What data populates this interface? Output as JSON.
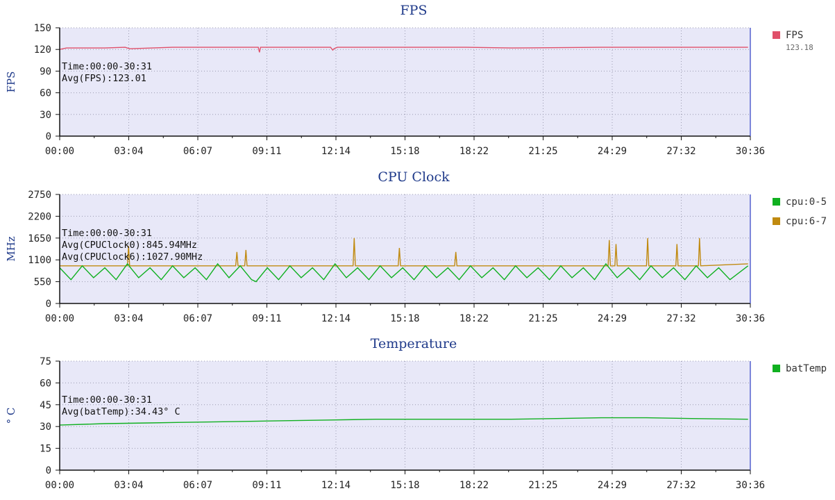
{
  "x_tick_labels": [
    "00:00",
    "03:04",
    "06:07",
    "09:11",
    "12:14",
    "15:18",
    "18:22",
    "21:25",
    "24:29",
    "27:32",
    "30:36"
  ],
  "chart_data": [
    {
      "type": "line",
      "title": "FPS",
      "ylabel": "FPS",
      "ylim": [
        0,
        150
      ],
      "yticks": [
        0,
        30,
        60,
        90,
        120,
        150
      ],
      "xlim_minutes": [
        0,
        30.6
      ],
      "annotations": [
        "Time:00:00-30:31",
        "Avg(FPS):123.01"
      ],
      "legend": [
        {
          "name": "FPS",
          "value_label": "123.18",
          "color": "#e0506a"
        }
      ],
      "series": [
        {
          "name": "FPS",
          "color": "#e0506a",
          "x": [
            0,
            0.3,
            2.0,
            2.9,
            3.1,
            5.0,
            7.0,
            8.8,
            8.85,
            8.9,
            10.0,
            12.0,
            12.1,
            12.15,
            12.3,
            14.0,
            18.0,
            20.0,
            24.0,
            28.0,
            30.5
          ],
          "values": [
            120,
            122,
            122,
            123,
            121,
            123,
            123,
            123,
            116,
            123,
            123,
            123,
            119,
            121,
            123,
            123,
            123,
            122,
            123,
            123,
            123
          ]
        }
      ]
    },
    {
      "type": "line",
      "title": "CPU Clock",
      "ylabel": "MHz",
      "ylim": [
        0,
        2750
      ],
      "yticks": [
        0,
        550,
        1100,
        1650,
        2200,
        2750
      ],
      "xlim_minutes": [
        0,
        30.6
      ],
      "annotations": [
        "Time:00:00-30:31",
        "Avg(CPUClock0):845.94MHz",
        "Avg(CPUClock6):1027.90MHz"
      ],
      "legend": [
        {
          "name": "cpu:0-5",
          "color": "#10b020"
        },
        {
          "name": "cpu:6-7",
          "color": "#c08a10"
        }
      ],
      "series": [
        {
          "name": "cpu:6-7",
          "color": "#c08a10",
          "x": [
            0,
            3.0,
            3.05,
            3.1,
            7.8,
            7.85,
            7.9,
            8.2,
            8.25,
            8.3,
            13.0,
            13.05,
            13.1,
            15.0,
            15.05,
            15.1,
            17.5,
            17.55,
            17.6,
            24.3,
            24.35,
            24.4,
            24.6,
            24.65,
            24.7,
            26.0,
            26.05,
            26.1,
            27.3,
            27.35,
            27.4,
            28.3,
            28.35,
            28.4,
            30.5
          ],
          "values": [
            950,
            950,
            1450,
            950,
            950,
            1300,
            950,
            950,
            1350,
            950,
            950,
            1650,
            950,
            950,
            1400,
            950,
            950,
            1300,
            950,
            950,
            1600,
            950,
            950,
            1500,
            950,
            950,
            1650,
            950,
            950,
            1500,
            950,
            950,
            1650,
            950,
            1000
          ]
        },
        {
          "name": "cpu:0-5",
          "color": "#10b020",
          "x": [
            0,
            0.5,
            1.0,
            1.5,
            2.0,
            2.5,
            3.0,
            3.5,
            4.0,
            4.5,
            5.0,
            5.5,
            6.0,
            6.5,
            7.0,
            7.5,
            8.0,
            8.5,
            8.7,
            9.2,
            9.7,
            10.2,
            10.7,
            11.2,
            11.7,
            12.2,
            12.7,
            13.2,
            13.7,
            14.2,
            14.7,
            15.2,
            15.7,
            16.2,
            16.7,
            17.2,
            17.7,
            18.2,
            18.7,
            19.2,
            19.7,
            20.2,
            20.7,
            21.2,
            21.7,
            22.2,
            22.7,
            23.2,
            23.7,
            24.2,
            24.7,
            25.2,
            25.7,
            26.2,
            26.7,
            27.2,
            27.7,
            28.2,
            28.7,
            29.2,
            29.7,
            30.5
          ],
          "values": [
            900,
            600,
            950,
            650,
            900,
            600,
            1000,
            650,
            900,
            600,
            950,
            650,
            900,
            600,
            1000,
            650,
            950,
            600,
            550,
            900,
            600,
            950,
            650,
            900,
            600,
            1000,
            650,
            900,
            600,
            950,
            650,
            900,
            600,
            950,
            650,
            900,
            600,
            950,
            650,
            900,
            600,
            950,
            650,
            900,
            600,
            950,
            650,
            900,
            600,
            1000,
            650,
            900,
            600,
            950,
            650,
            900,
            600,
            950,
            650,
            900,
            600,
            950
          ]
        }
      ]
    },
    {
      "type": "line",
      "title": "Temperature",
      "ylabel": "° C",
      "ylim": [
        0,
        75
      ],
      "yticks": [
        0,
        15,
        30,
        45,
        60,
        75
      ],
      "xlim_minutes": [
        0,
        30.6
      ],
      "annotations": [
        "Time:00:00-30:31",
        "Avg(batTemp):34.43° C"
      ],
      "legend": [
        {
          "name": "batTemp",
          "color": "#10b020"
        }
      ],
      "series": [
        {
          "name": "batTemp",
          "color": "#10b020",
          "x": [
            0,
            2,
            4,
            6,
            8,
            10,
            12,
            14,
            16,
            18,
            20,
            22,
            24,
            26,
            28,
            30.5
          ],
          "values": [
            31,
            32,
            32.5,
            33,
            33.5,
            34,
            34.5,
            35,
            35,
            35,
            35,
            35.5,
            36,
            36,
            35.5,
            35
          ]
        }
      ]
    }
  ]
}
